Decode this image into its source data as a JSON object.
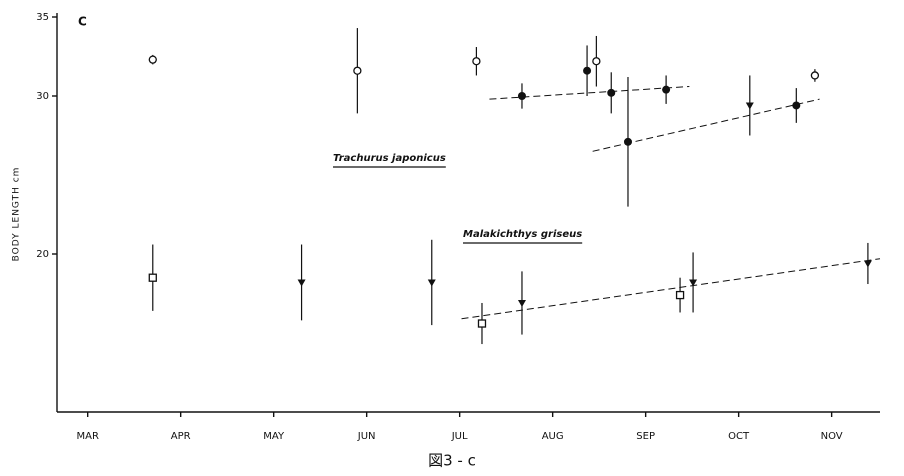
{
  "chart_data": {
    "type": "scatter",
    "panel_label": "C",
    "y_label": "BODY LENGTH cm",
    "caption": "図3 - c",
    "xlim": [
      2.67,
      11.52
    ],
    "ylim": [
      10,
      35
    ],
    "xticks": [
      {
        "value": 3,
        "label": "MAR"
      },
      {
        "value": 4,
        "label": "APR"
      },
      {
        "value": 5,
        "label": "MAY"
      },
      {
        "value": 6,
        "label": "JUN"
      },
      {
        "value": 7,
        "label": "JUL"
      },
      {
        "value": 8,
        "label": "AUG"
      },
      {
        "value": 9,
        "label": "SEP"
      },
      {
        "value": 10,
        "label": "OCT"
      },
      {
        "value": 11,
        "label": "NOV"
      }
    ],
    "yticks": [
      20,
      30,
      35
    ],
    "series": [
      {
        "name": "Trachurus japonicus",
        "color": "#111111",
        "x": [
          3.7,
          5.9,
          7.18,
          8.47,
          10.82,
          7.67,
          8.37,
          8.63,
          9.22,
          8.81,
          10.62,
          10.12
        ],
        "values": [
          32.3,
          31.6,
          32.2,
          32.2,
          31.3,
          30.0,
          31.6,
          30.2,
          30.4,
          27.1,
          29.4,
          29.4
        ],
        "errors": [
          0.3,
          2.7,
          0.9,
          1.6,
          0.4,
          0.8,
          1.6,
          1.3,
          0.9,
          4.1,
          1.1,
          1.9
        ],
        "markers": [
          "open-circle",
          "open-circle",
          "open-circle",
          "open-circle",
          "open-circle",
          "filled-circle",
          "filled-circle",
          "filled-circle",
          "filled-circle",
          "filled-circle",
          "filled-circle",
          "triangle"
        ],
        "trend_lines": [
          {
            "x": [
              7.32,
              9.47
            ],
            "values": [
              29.8,
              30.6
            ]
          },
          {
            "x": [
              8.43,
              10.87
            ],
            "values": [
              26.5,
              29.8
            ]
          }
        ]
      },
      {
        "name": "Malakichthys griseus",
        "color": "#111111",
        "x": [
          3.7,
          5.3,
          6.7,
          7.24,
          7.67,
          9.37,
          9.51,
          11.39
        ],
        "values": [
          18.5,
          18.2,
          18.2,
          15.6,
          16.9,
          17.4,
          18.2,
          19.4
        ],
        "errors": [
          2.1,
          2.4,
          2.7,
          1.3,
          2.0,
          1.1,
          1.9,
          1.3
        ],
        "markers": [
          "open-square",
          "triangle",
          "triangle",
          "open-square",
          "triangle",
          "open-square",
          "triangle",
          "triangle"
        ],
        "trend_lines": [
          {
            "x": [
              7.02,
              11.52
            ],
            "values": [
              15.9,
              19.7
            ]
          }
        ]
      }
    ]
  }
}
